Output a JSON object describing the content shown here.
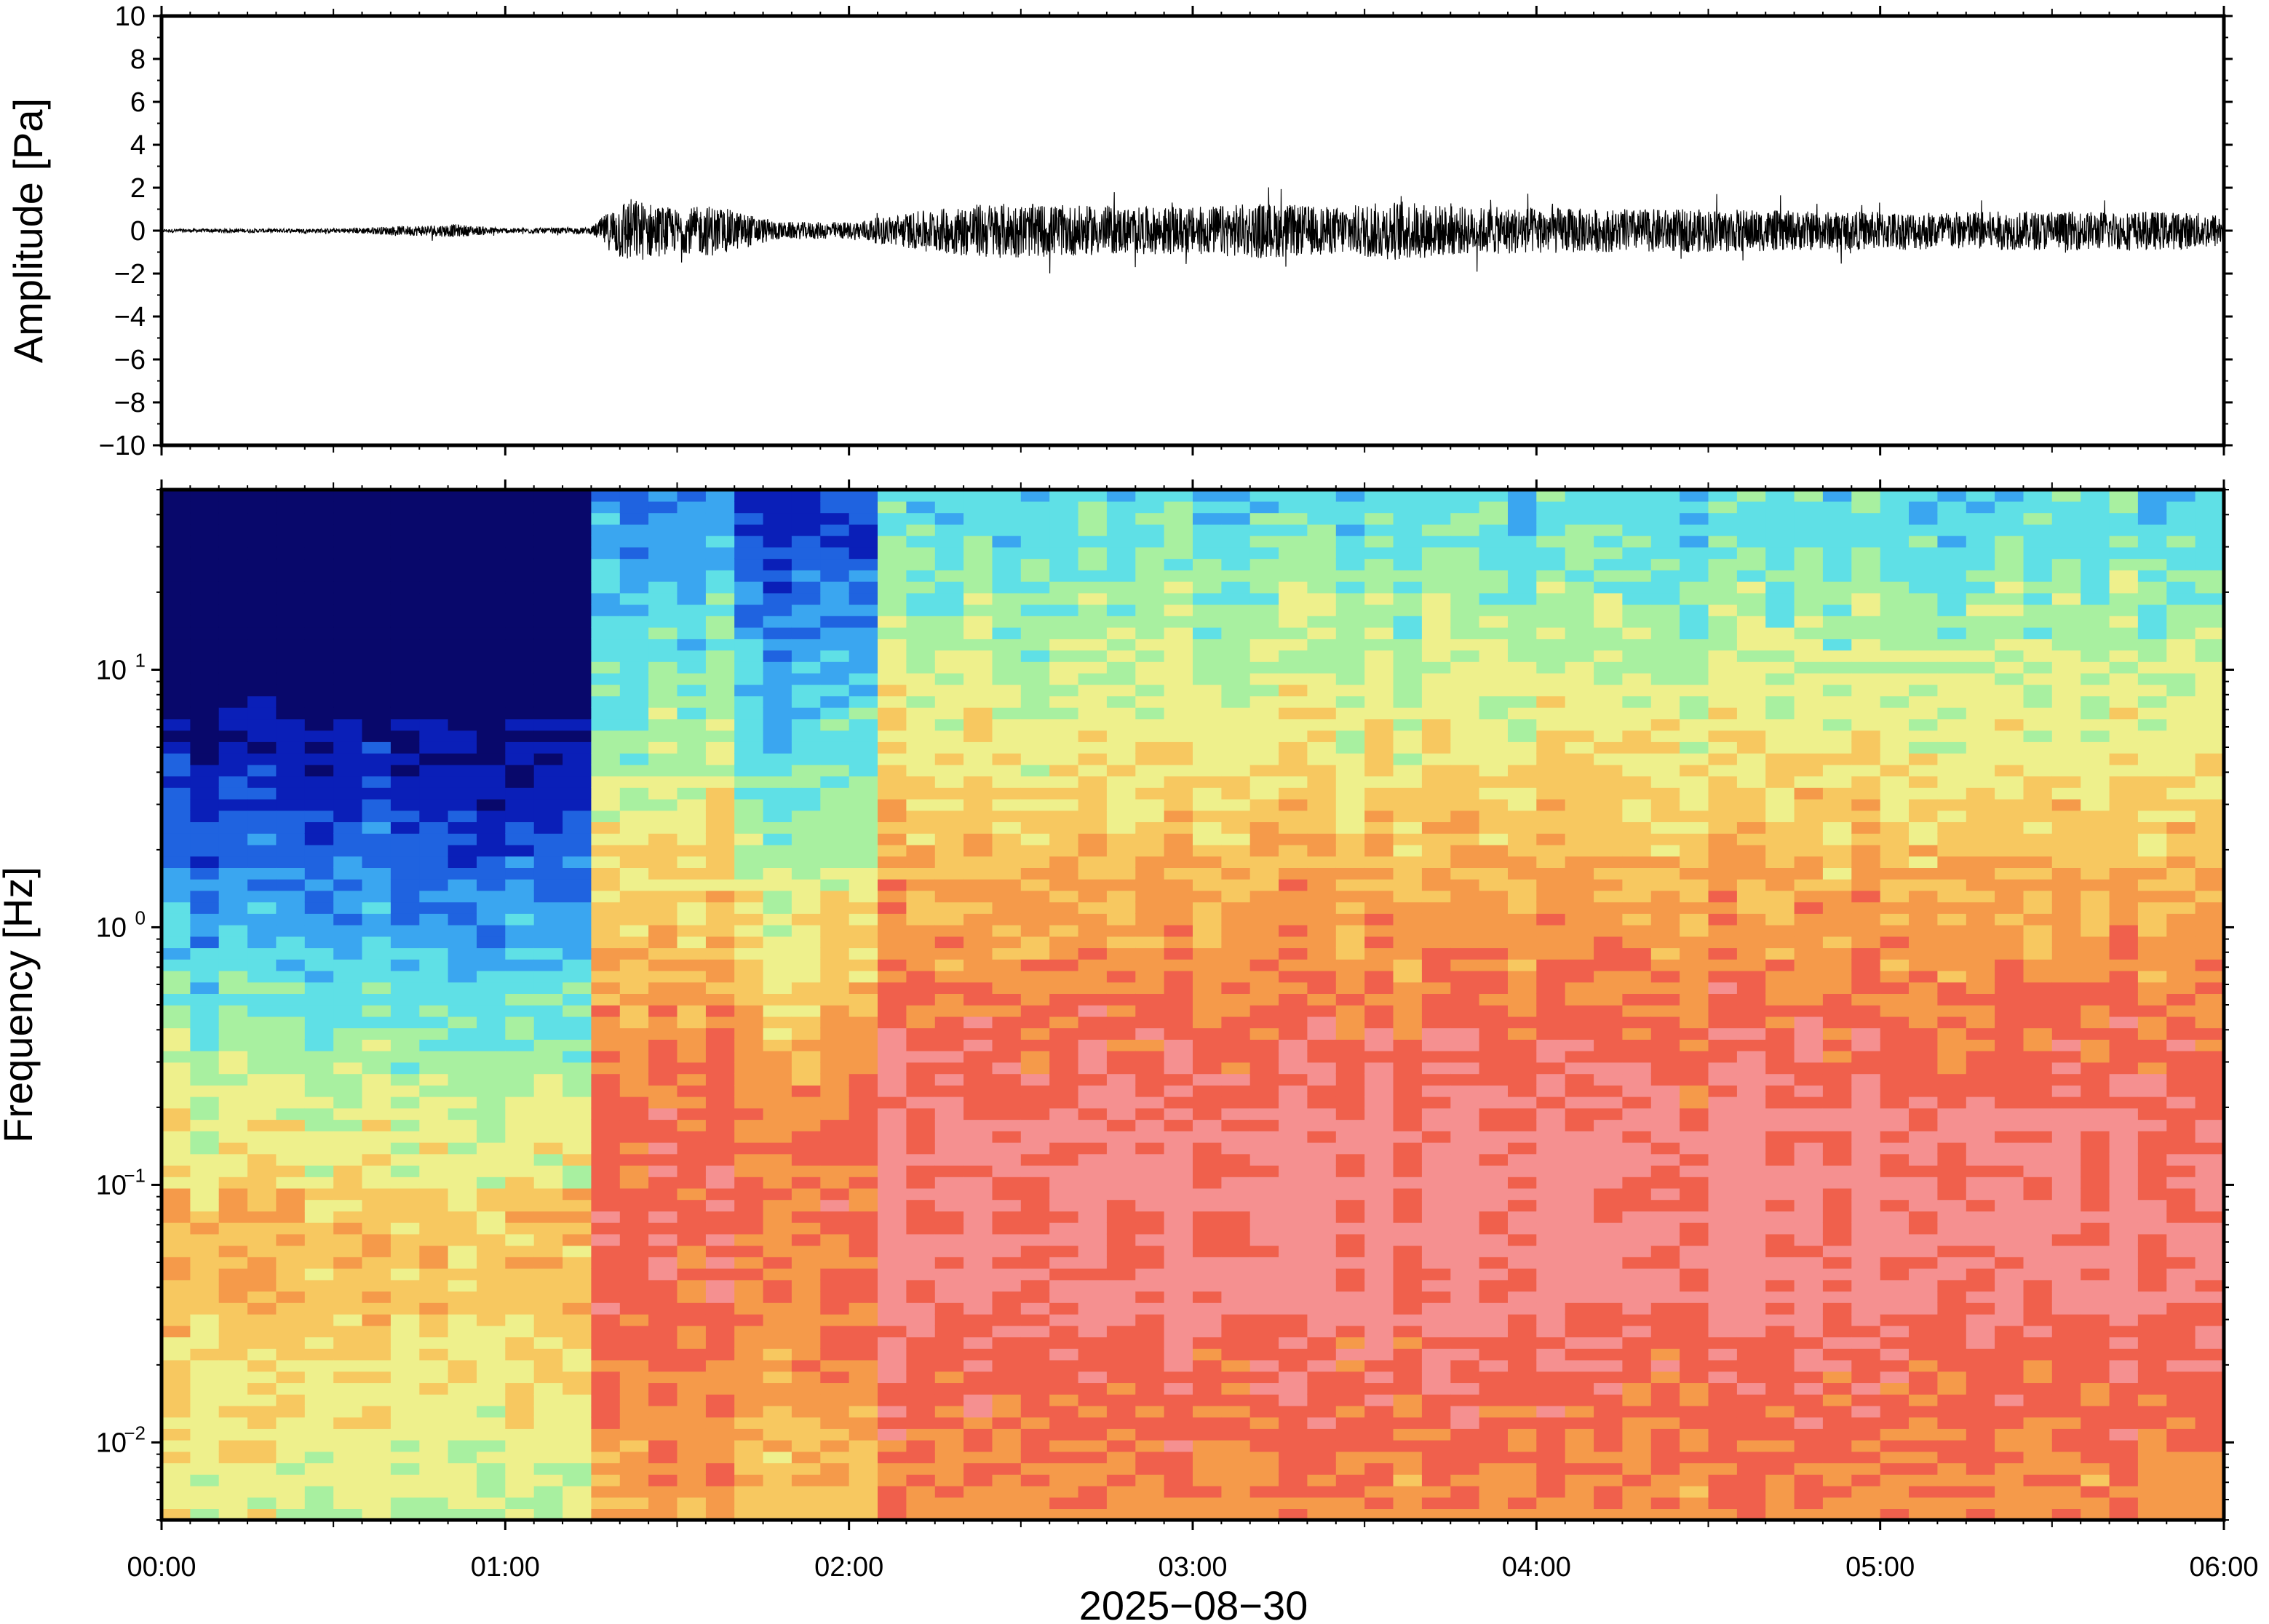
{
  "chart_data": [
    {
      "type": "line",
      "name": "waveform",
      "ylabel": "Amplitude [Pa]",
      "xlabel": "",
      "ylim": [
        -10,
        10
      ],
      "yticks": [
        10,
        8,
        6,
        4,
        2,
        0,
        -2,
        -4,
        -6,
        -8,
        -10
      ],
      "ytick_labels": [
        "10",
        "8",
        "6",
        "4",
        "2",
        "0",
        "−2",
        "−4",
        "−6",
        "−8",
        "−10"
      ],
      "xlim": [
        "00:00",
        "06:00"
      ],
      "envelope": {
        "description_units": "hours since 00:00 vs amplitude in Pa",
        "t": [
          0.0,
          0.5,
          0.75,
          0.85,
          1.0,
          1.25,
          1.3,
          1.35,
          1.5,
          1.6,
          1.8,
          2.0,
          2.2,
          2.4,
          2.6,
          2.8,
          3.0,
          3.2,
          3.4,
          3.6,
          3.8,
          4.0,
          4.2,
          4.4,
          4.6,
          4.8,
          5.0,
          5.2,
          5.4,
          5.6,
          5.8,
          6.0
        ],
        "amp": [
          0.08,
          0.1,
          0.25,
          0.3,
          0.12,
          0.15,
          0.9,
          1.6,
          1.0,
          1.2,
          0.4,
          0.4,
          0.9,
          1.3,
          1.2,
          1.1,
          1.1,
          1.3,
          1.1,
          1.4,
          1.1,
          1.1,
          1.0,
          1.0,
          1.0,
          0.9,
          0.9,
          0.9,
          0.9,
          0.9,
          0.9,
          0.8
        ]
      },
      "grid": false
    },
    {
      "type": "heatmap",
      "name": "spectrogram",
      "ylabel": "Frequency [Hz]",
      "xlabel": "2025−08−30",
      "yscale": "log",
      "ylim": [
        0.005,
        50
      ],
      "ytick_labels": [
        {
          "base": "10",
          "exp": "1"
        },
        {
          "base": "10",
          "exp": "0"
        },
        {
          "base": "10",
          "exp": "−1"
        },
        {
          "base": "10",
          "exp": "−2"
        }
      ],
      "x_tick_labels": [
        "00:00",
        "01:00",
        "02:00",
        "03:00",
        "04:00",
        "05:00",
        "06:00"
      ],
      "colormap": "jet (dark blue low power → red high power)",
      "colors": [
        "#08086b",
        "#0a1fb8",
        "#1f63e0",
        "#3aa6f0",
        "#5fe0e6",
        "#a8f0a0",
        "#eef08c",
        "#f7c860",
        "#f59a4a",
        "#f0604c",
        "#f59090"
      ],
      "grid": false
    }
  ]
}
